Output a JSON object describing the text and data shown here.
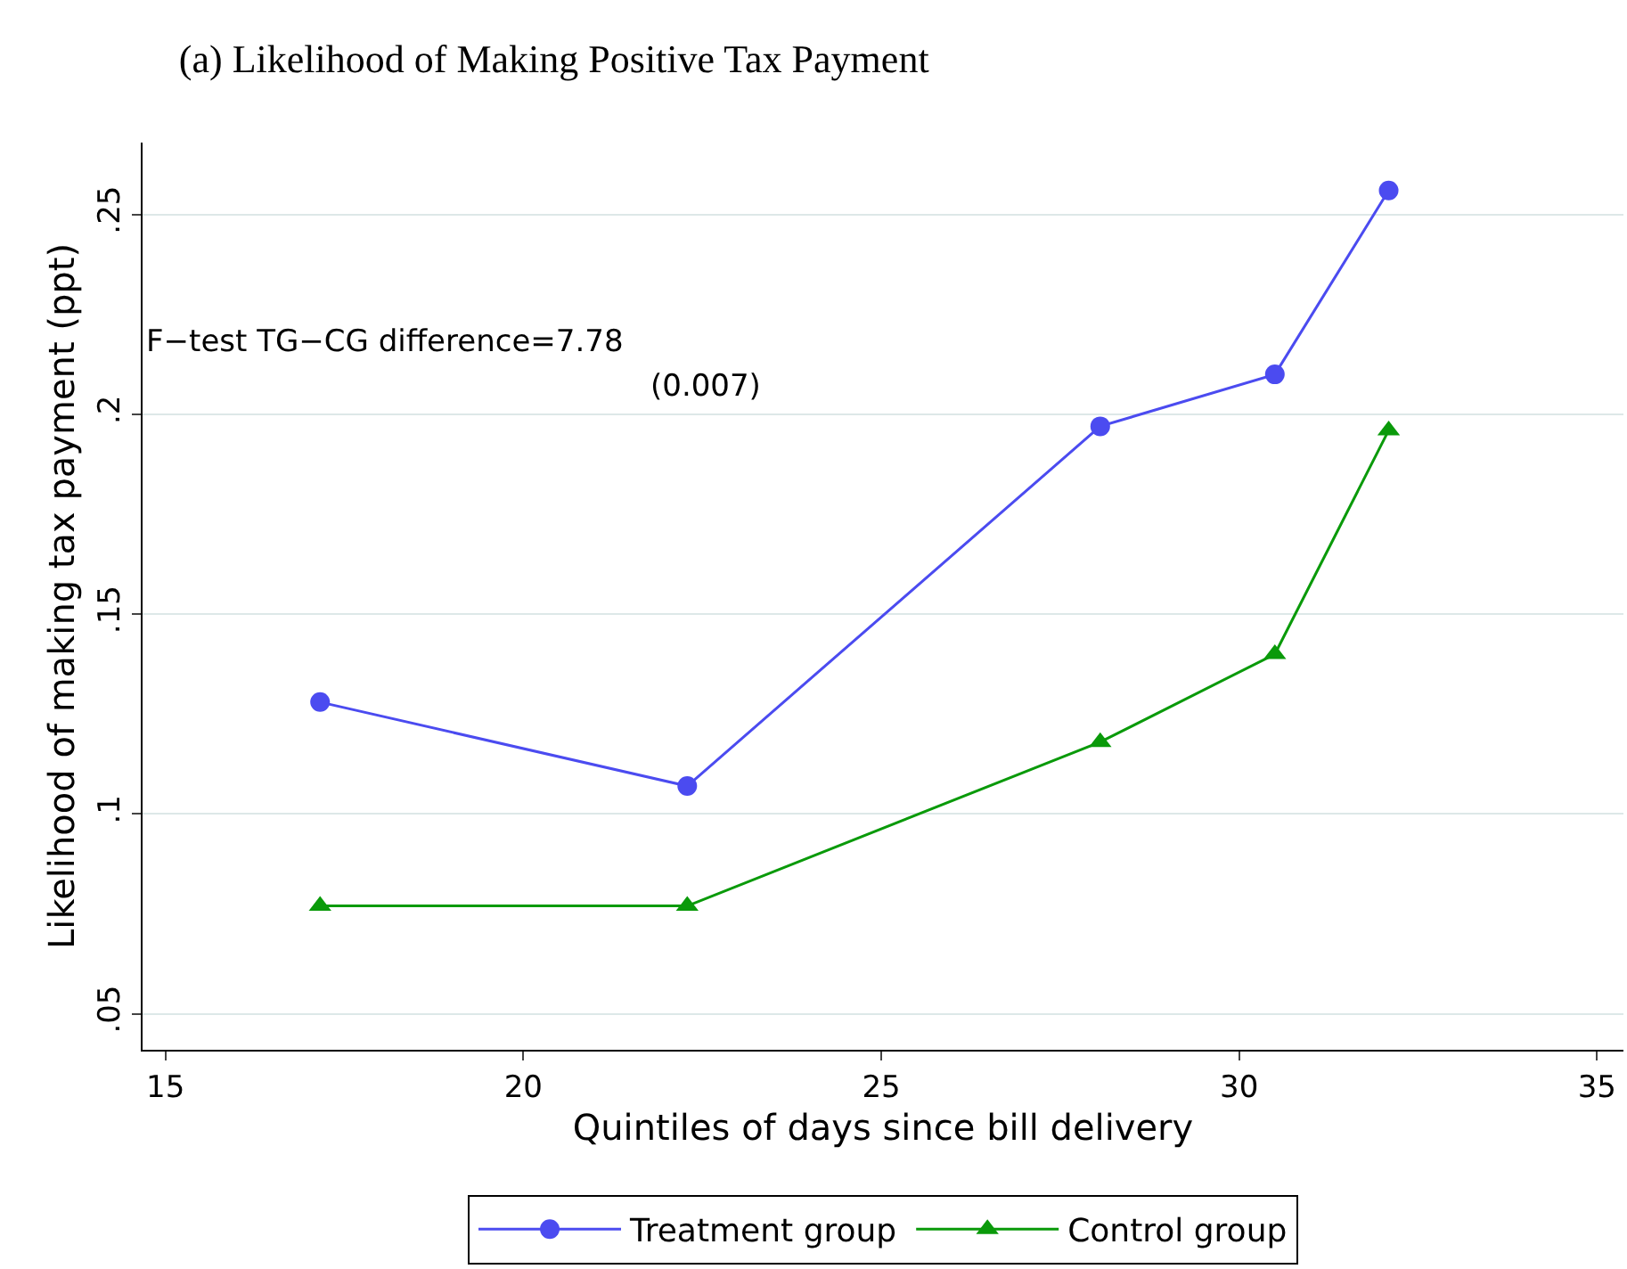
{
  "chart_data": {
    "type": "line",
    "title": "(a) Likelihood of Making Positive Tax Payment",
    "xlabel": "Quintiles of days since bill delivery",
    "ylabel": "Likelihood of making tax payment (ppt)",
    "x": [
      17.16,
      22.29,
      28.06,
      30.5,
      32.09
    ],
    "series": [
      {
        "name": "Treatment group",
        "color": "#4b4bf0",
        "marker": "circle",
        "values": [
          0.128,
          0.107,
          0.197,
          0.21,
          0.256
        ]
      },
      {
        "name": "Control group",
        "color": "#0a9a0a",
        "marker": "triangle",
        "values": [
          0.077,
          0.077,
          0.118,
          0.14,
          0.196
        ]
      }
    ],
    "xlim": [
      14.68,
      35.37
    ],
    "xticks": [
      15,
      20,
      25,
      30,
      35
    ],
    "ylim": [
      0.041,
      0.268
    ],
    "yticks": [
      {
        "value": 0.05,
        "label": ".05"
      },
      {
        "value": 0.1,
        "label": ".1"
      },
      {
        "value": 0.15,
        "label": ".15"
      },
      {
        "value": 0.2,
        "label": ".2"
      },
      {
        "value": 0.25,
        "label": ".25"
      }
    ],
    "annotations": [
      "F−test TG−CG difference=7.78",
      "(0.007)"
    ],
    "grid": "y",
    "legend": "bottom",
    "line_style": "solid"
  }
}
